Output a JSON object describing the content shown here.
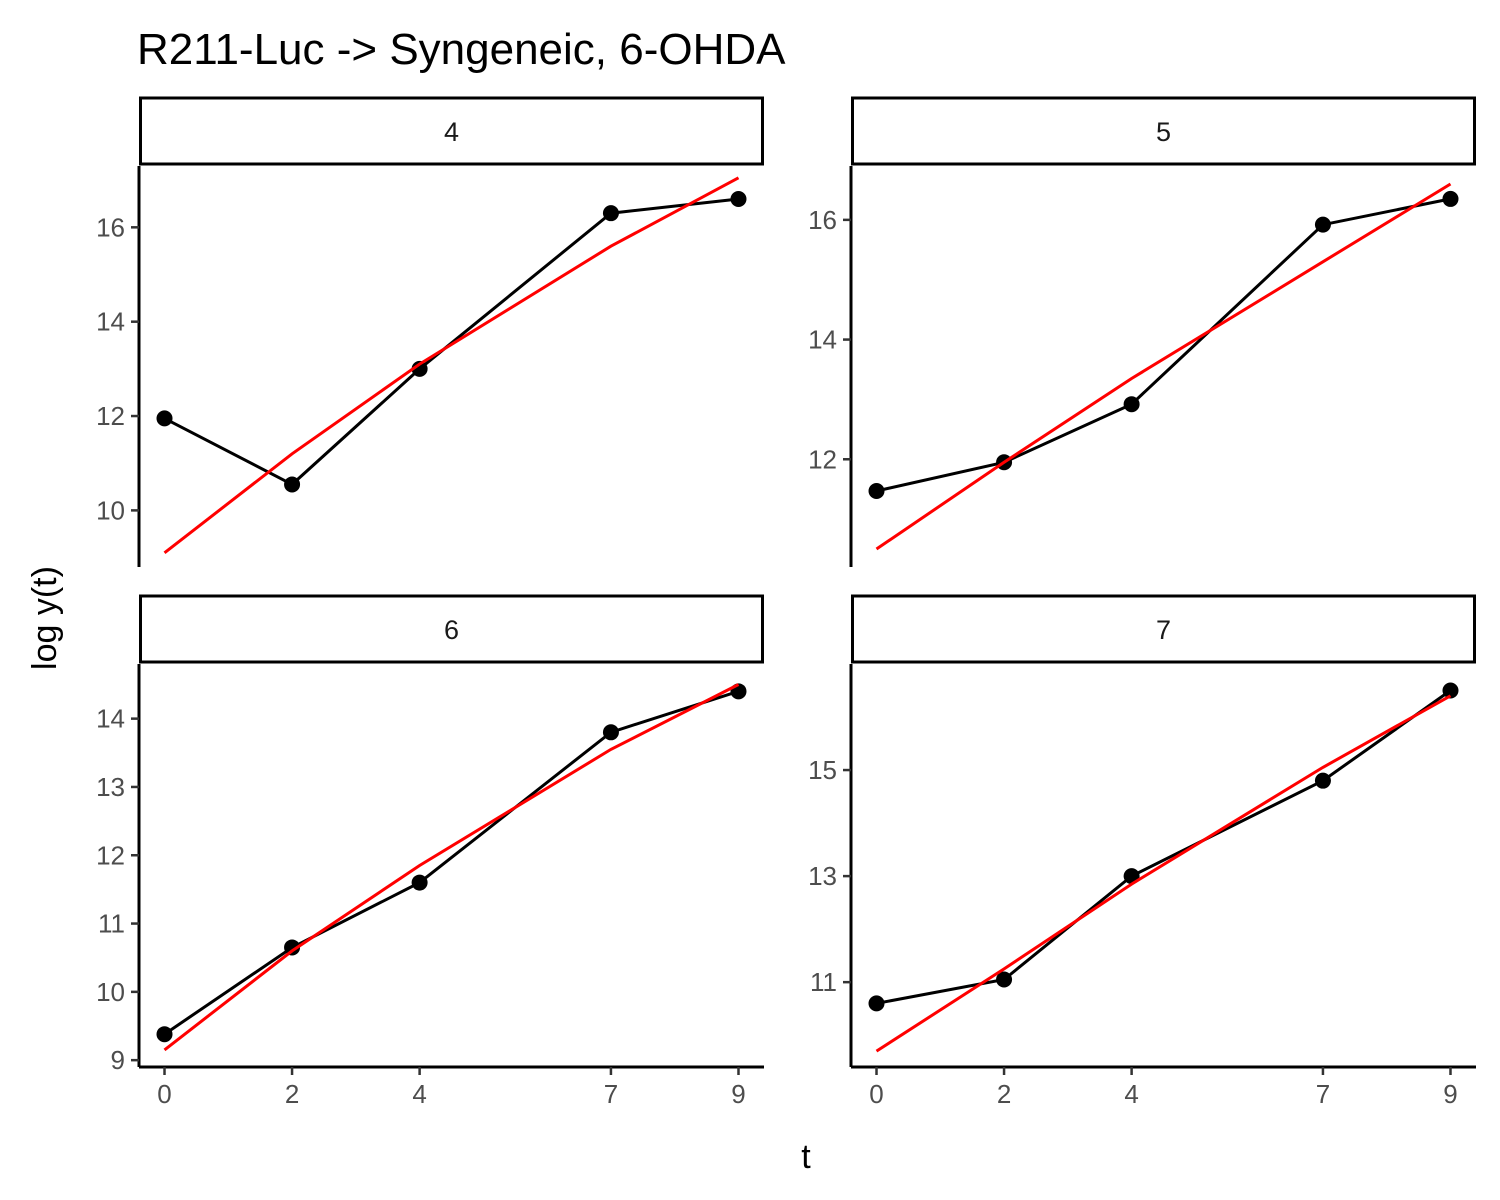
{
  "chart_data": {
    "type": "line",
    "title": "R211-Luc -> Syngeneic, 6-OHDA",
    "xlabel": "t",
    "ylabel": "log y(t)",
    "x_ticks": [
      0,
      2,
      4,
      7,
      9
    ],
    "xlim": [
      -0.4,
      9.4
    ],
    "grid": false,
    "legend": "none",
    "colors": {
      "observed": "#000000",
      "fit": "#ff0000"
    },
    "panels": [
      {
        "label": "4",
        "ylim": [
          8.8,
          17.3
        ],
        "y_ticks": [
          10,
          12,
          14,
          16
        ],
        "series": [
          {
            "kind": "observed",
            "x": [
              0,
              2,
              4,
              7,
              9
            ],
            "y": [
              11.95,
              10.55,
              13.0,
              16.3,
              16.6
            ]
          },
          {
            "kind": "fit",
            "x": [
              0,
              2,
              4,
              7,
              9
            ],
            "y": [
              9.1,
              11.2,
              13.1,
              15.6,
              17.05
            ]
          }
        ]
      },
      {
        "label": "5",
        "ylim": [
          10.2,
          16.9
        ],
        "y_ticks": [
          12,
          14,
          16
        ],
        "series": [
          {
            "kind": "observed",
            "x": [
              0,
              2,
              4,
              7,
              9
            ],
            "y": [
              11.47,
              11.95,
              12.92,
              15.92,
              16.35
            ]
          },
          {
            "kind": "fit",
            "x": [
              0,
              2,
              4,
              7,
              9
            ],
            "y": [
              10.5,
              11.95,
              13.35,
              15.3,
              16.6
            ]
          }
        ]
      },
      {
        "label": "6",
        "ylim": [
          8.9,
          14.8
        ],
        "y_ticks": [
          9,
          10,
          11,
          12,
          13,
          14
        ],
        "series": [
          {
            "kind": "observed",
            "x": [
              0,
              2,
              4,
              7,
              9
            ],
            "y": [
              9.38,
              10.65,
              11.6,
              13.8,
              14.4
            ]
          },
          {
            "kind": "fit",
            "x": [
              0,
              2,
              4,
              7,
              9
            ],
            "y": [
              9.15,
              10.6,
              11.85,
              13.55,
              14.5
            ]
          }
        ]
      },
      {
        "label": "7",
        "ylim": [
          9.4,
          17.0
        ],
        "y_ticks": [
          11,
          13,
          15
        ],
        "series": [
          {
            "kind": "observed",
            "x": [
              0,
              2,
              4,
              7,
              9
            ],
            "y": [
              10.6,
              11.05,
              13.0,
              14.8,
              16.5
            ]
          },
          {
            "kind": "fit",
            "x": [
              0,
              2,
              4,
              7,
              9
            ],
            "y": [
              9.7,
              11.25,
              12.85,
              15.05,
              16.4
            ]
          }
        ]
      }
    ]
  }
}
